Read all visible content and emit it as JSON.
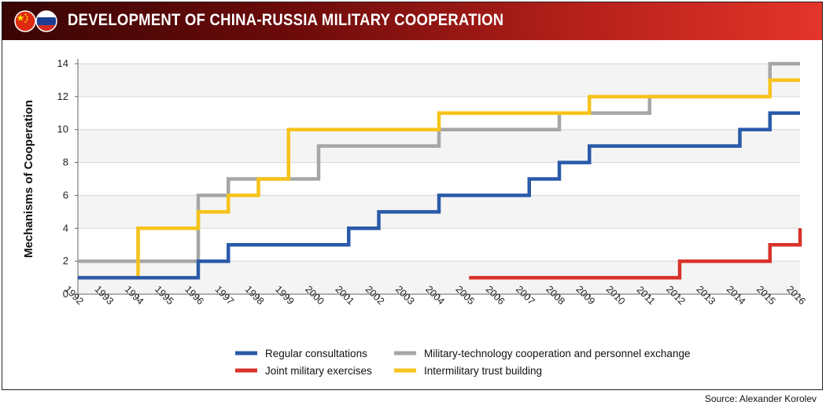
{
  "header": {
    "title": "DEVELOPMENT OF CHINA-RUSSIA MILITARY COOPERATION"
  },
  "icons": {
    "china_flag": "china-flag-icon",
    "russia_flag": "russia-flag-icon"
  },
  "source": "Source: Alexander Korolev",
  "colors": {
    "regular": "#2a5aa8",
    "military_tech": "#a6a6a6",
    "joint": "#d8322a",
    "trust": "#f6c31a",
    "banner_dark": "#3a0505",
    "banner_light": "#e4352a"
  },
  "chart_data": {
    "type": "line",
    "step": true,
    "title": "DEVELOPMENT OF CHINA-RUSSIA MILITARY COOPERATION",
    "xlabel": "",
    "ylabel": "Mechanisms of Cooperation",
    "ylim": [
      0,
      14
    ],
    "yticks": [
      0,
      2,
      4,
      6,
      8,
      10,
      12,
      14
    ],
    "x_categories": [
      "1992",
      "1993",
      "1994",
      "1995",
      "1996",
      "1997",
      "1998",
      "1999",
      "2000",
      "2001",
      "2002",
      "2003",
      "2004",
      "2005",
      "2006",
      "2007",
      "2008",
      "2009",
      "2010",
      "2011",
      "2012",
      "2013",
      "2014",
      "2015",
      "2016"
    ],
    "grid": true,
    "legend_position": "bottom",
    "series": [
      {
        "name": "Military-technology cooperation and personnel exchange",
        "key": "military_tech",
        "values": [
          2,
          2,
          2,
          2,
          6,
          7,
          7,
          7,
          9,
          9,
          9,
          9,
          10,
          10,
          10,
          10,
          11,
          11,
          11,
          12,
          12,
          12,
          12,
          14,
          14
        ]
      },
      {
        "name": "Intermilitary trust building",
        "key": "trust",
        "values": [
          1,
          1,
          4,
          4,
          5,
          6,
          7,
          10,
          10,
          10,
          10,
          10,
          11,
          11,
          11,
          11,
          11,
          12,
          12,
          12,
          12,
          12,
          12,
          13,
          13
        ]
      },
      {
        "name": "Regular consultations",
        "key": "regular",
        "values": [
          1,
          1,
          1,
          1,
          2,
          3,
          3,
          3,
          3,
          4,
          5,
          5,
          6,
          6,
          6,
          7,
          8,
          9,
          9,
          9,
          9,
          9,
          10,
          11,
          11
        ]
      },
      {
        "name": "Joint military exercises",
        "key": "joint",
        "values": [
          null,
          null,
          null,
          null,
          null,
          null,
          null,
          null,
          null,
          null,
          null,
          null,
          null,
          1,
          1,
          1,
          1,
          1,
          1,
          1,
          2,
          2,
          2,
          3,
          4
        ]
      }
    ]
  },
  "legend": [
    {
      "key": "regular",
      "label": "Regular consultations"
    },
    {
      "key": "military_tech",
      "label": "Military-technology cooperation and personnel exchange"
    },
    {
      "key": "joint",
      "label": "Joint military exercises"
    },
    {
      "key": "trust",
      "label": "Intermilitary trust building"
    }
  ]
}
